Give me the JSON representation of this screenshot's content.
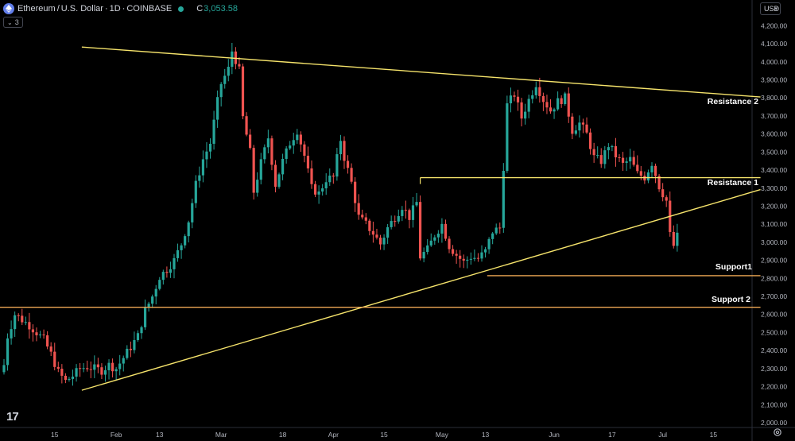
{
  "header": {
    "symbol": "Ethereum",
    "separator": "/",
    "quote": "U.S. Dollar",
    "interval": "1D",
    "exchange": "COINBASE",
    "close_label": "C",
    "close_value": "3,053.58"
  },
  "indicators_badge": "3",
  "currency_button": "USD",
  "colors": {
    "up": "#26a69a",
    "down": "#ef5350",
    "trendline": "#f5e36b",
    "support_line": "#f0a955",
    "axis_text": "#b2b5be",
    "background": "#000000"
  },
  "chart_data": {
    "type": "candlestick",
    "title": "Ethereum / U.S. Dollar · 1D · COINBASE",
    "ylim": [
      2000,
      4250
    ],
    "y_ticks": [
      2000,
      2100,
      2200,
      2300,
      2400,
      2500,
      2600,
      2700,
      2800,
      2900,
      3000,
      3100,
      3200,
      3300,
      3400,
      3500,
      3600,
      3700,
      3800,
      3900,
      4000,
      4100,
      4200
    ],
    "y_tick_labels": [
      "2,000.00",
      "2,100.00",
      "2,200.00",
      "2,300.00",
      "2,400.00",
      "2,500.00",
      "2,600.00",
      "2,700.00",
      "2,800.00",
      "2,900.00",
      "3,000.00",
      "3,100.00",
      "3,200.00",
      "3,300.00",
      "3,400.00",
      "3,500.00",
      "3,600.00",
      "3,700.00",
      "3,800.00",
      "3,900.00",
      "4,000.00",
      "4,100.00",
      "4,200.00"
    ],
    "x_ticks": [
      {
        "day": 14,
        "label": "15"
      },
      {
        "day": 31,
        "label": "Feb"
      },
      {
        "day": 43,
        "label": "13"
      },
      {
        "day": 60,
        "label": "Mar"
      },
      {
        "day": 77,
        "label": "18"
      },
      {
        "day": 91,
        "label": "Apr"
      },
      {
        "day": 105,
        "label": "15"
      },
      {
        "day": 121,
        "label": "May"
      },
      {
        "day": 133,
        "label": "13"
      },
      {
        "day": 152,
        "label": "Jun"
      },
      {
        "day": 168,
        "label": "17"
      },
      {
        "day": 182,
        "label": "Jul"
      },
      {
        "day": 196,
        "label": "15"
      }
    ],
    "anchors": [
      [
        0,
        2320
      ],
      [
        1,
        2480
      ],
      [
        3,
        2600
      ],
      [
        5,
        2570
      ],
      [
        7,
        2540
      ],
      [
        9,
        2500
      ],
      [
        11,
        2460
      ],
      [
        13,
        2380
      ],
      [
        15,
        2280
      ],
      [
        17,
        2230
      ],
      [
        19,
        2260
      ],
      [
        21,
        2300
      ],
      [
        23,
        2310
      ],
      [
        25,
        2300
      ],
      [
        27,
        2290
      ],
      [
        29,
        2320
      ],
      [
        31,
        2300
      ],
      [
        33,
        2360
      ],
      [
        35,
        2420
      ],
      [
        37,
        2480
      ],
      [
        39,
        2620
      ],
      [
        41,
        2700
      ],
      [
        43,
        2810
      ],
      [
        45,
        2850
      ],
      [
        47,
        2900
      ],
      [
        49,
        2990
      ],
      [
        51,
        3120
      ],
      [
        53,
        3320
      ],
      [
        55,
        3460
      ],
      [
        57,
        3550
      ],
      [
        59,
        3780
      ],
      [
        60,
        3880
      ],
      [
        62,
        3960
      ],
      [
        63,
        4060
      ],
      [
        64,
        4010
      ],
      [
        65,
        3950
      ],
      [
        66,
        3690
      ],
      [
        68,
        3500
      ],
      [
        69,
        3280
      ],
      [
        71,
        3440
      ],
      [
        73,
        3580
      ],
      [
        75,
        3320
      ],
      [
        77,
        3450
      ],
      [
        79,
        3550
      ],
      [
        81,
        3620
      ],
      [
        83,
        3480
      ],
      [
        85,
        3300
      ],
      [
        87,
        3270
      ],
      [
        89,
        3350
      ],
      [
        91,
        3360
      ],
      [
        93,
        3570
      ],
      [
        94,
        3470
      ],
      [
        96,
        3330
      ],
      [
        98,
        3140
      ],
      [
        100,
        3100
      ],
      [
        102,
        3050
      ],
      [
        104,
        2990
      ],
      [
        106,
        3080
      ],
      [
        108,
        3140
      ],
      [
        110,
        3200
      ],
      [
        112,
        3140
      ],
      [
        114,
        3220
      ],
      [
        115,
        2920
      ],
      [
        117,
        2960
      ],
      [
        119,
        3040
      ],
      [
        121,
        3100
      ],
      [
        123,
        2980
      ],
      [
        125,
        2930
      ],
      [
        127,
        2890
      ],
      [
        129,
        2920
      ],
      [
        131,
        2910
      ],
      [
        133,
        2950
      ],
      [
        135,
        3060
      ],
      [
        137,
        3080
      ],
      [
        139,
        3760
      ],
      [
        141,
        3820
      ],
      [
        143,
        3690
      ],
      [
        145,
        3790
      ],
      [
        147,
        3880
      ],
      [
        149,
        3790
      ],
      [
        151,
        3730
      ],
      [
        153,
        3780
      ],
      [
        155,
        3800
      ],
      [
        157,
        3620
      ],
      [
        159,
        3660
      ],
      [
        161,
        3600
      ],
      [
        163,
        3470
      ],
      [
        165,
        3450
      ],
      [
        167,
        3540
      ],
      [
        169,
        3480
      ],
      [
        171,
        3430
      ],
      [
        173,
        3460
      ],
      [
        175,
        3380
      ],
      [
        177,
        3360
      ],
      [
        179,
        3440
      ],
      [
        181,
        3310
      ],
      [
        183,
        3230
      ],
      [
        184,
        3040
      ],
      [
        185,
        2980
      ],
      [
        186,
        3053
      ]
    ],
    "annotations": [
      {
        "type": "trendline",
        "from": [
          21.5,
          4082
        ],
        "to": [
          209,
          3805
        ],
        "label": ""
      },
      {
        "type": "trendline",
        "from": [
          21.5,
          2180
        ],
        "to": [
          209,
          3292
        ],
        "label": ""
      },
      {
        "type": "segment",
        "from": [
          115,
          3358
        ],
        "to": [
          209,
          3358
        ],
        "label": "Resistance 1"
      },
      {
        "type": "trendline",
        "from": [
          21.5,
          4082
        ],
        "to": [
          209,
          3805
        ],
        "label": "Resistance 2"
      },
      {
        "type": "hline",
        "from": [
          133.5,
          2815
        ],
        "to": [
          209,
          2815
        ],
        "label": "Support1"
      },
      {
        "type": "hline",
        "from": [
          -10,
          2640
        ],
        "to": [
          209,
          2640
        ],
        "label": "Support 2"
      }
    ]
  }
}
